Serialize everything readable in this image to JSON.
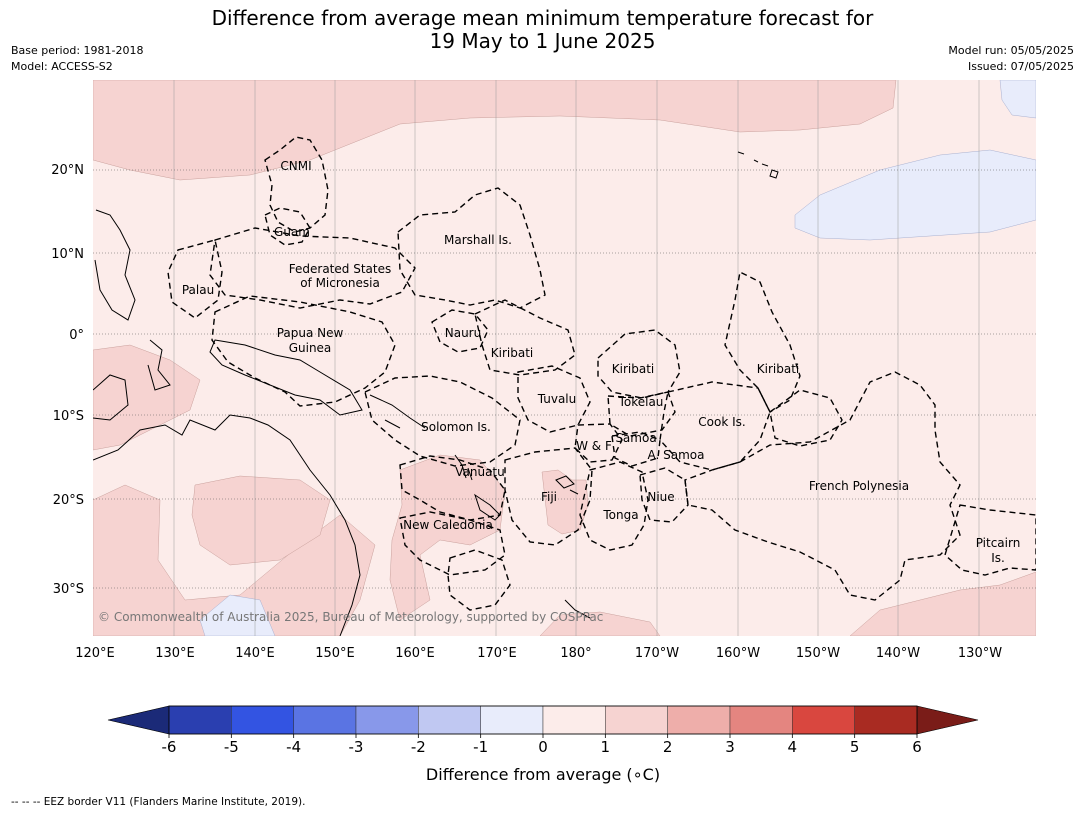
{
  "title": {
    "line1": "Difference from average mean minimum temperature forecast for",
    "line2": "19 May to 1 June 2025"
  },
  "meta_left": {
    "base_period": "Base period: 1981-2018",
    "model": "Model: ACCESS-S2"
  },
  "meta_right": {
    "model_run": "Model run: 05/05/2025",
    "issued": "Issued: 07/05/2025"
  },
  "map": {
    "lon_ticks": [
      "120°E",
      "130°E",
      "140°E",
      "150°E",
      "160°E",
      "170°E",
      "180°",
      "170°W",
      "160°W",
      "150°W",
      "140°W",
      "130°W"
    ],
    "lat_ticks": [
      "20°N",
      "10°N",
      "0°",
      "10°S",
      "20°S",
      "30°S"
    ],
    "copyright": "© Commonwealth of Australia 2025, Bureau of Meteorology, supported by COSPPac",
    "regions": {
      "cnmi": "CNMI",
      "guam": "Guam",
      "marshall": "Marshall Is.",
      "fsm_1": "Federated States",
      "fsm_2": "of Micronesia",
      "palau": "Palau",
      "png_1": "Papua New",
      "png_2": "Guinea",
      "nauru": "Nauru",
      "kiribati_w": "Kiribati",
      "kiribati_c": "Kiribati",
      "kiribati_e": "Kiribati",
      "tuvalu": "Tuvalu",
      "tokelau": "Tokelau",
      "cook": "Cook Is.",
      "solomon": "Solomon Is.",
      "wf": "W & F",
      "samoa": "Samoa",
      "asamoa": "A. Samoa",
      "vanuatu": "Vanuatu",
      "fiji": "Fiji",
      "niue": "Niue",
      "tonga": "Tonga",
      "newcal": "New Caledonia",
      "frpoly": "French Polynesia",
      "pitcairn_1": "Pitcairn",
      "pitcairn_2": "Is."
    }
  },
  "colorbar": {
    "label": "Difference from average (∘C)",
    "ticks": [
      "-6",
      "-5",
      "-4",
      "-3",
      "-2",
      "-1",
      "0",
      "1",
      "2",
      "3",
      "4",
      "5",
      "6"
    ],
    "under_color": "#1b2a78",
    "over_color": "#7a1c18",
    "colors": [
      "#2a3fb0",
      "#3354e2",
      "#5a74e3",
      "#8898ea",
      "#c0c8f2",
      "#e8ecfb",
      "#fcecea",
      "#f6d3d1",
      "#eeaeaa",
      "#e48580",
      "#d9473f",
      "#a92b22"
    ]
  },
  "footnote": "--  --  -- EEZ border V11 (Flanders Marine Institute, 2019)."
}
